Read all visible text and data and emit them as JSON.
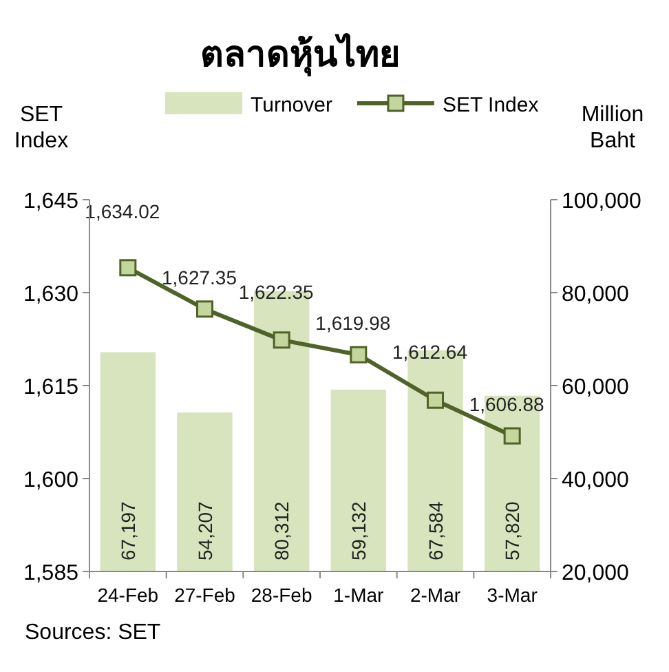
{
  "chart_data": {
    "type": "bar",
    "title": "ตลาดหุ้นไทย",
    "categories": [
      "24-Feb",
      "27-Feb",
      "28-Feb",
      "1-Mar",
      "2-Mar",
      "3-Mar"
    ],
    "series": [
      {
        "name": "Turnover",
        "axis": "y2",
        "color": "#d7e4bd",
        "values": [
          67197,
          54207,
          80312,
          59132,
          67584,
          57820
        ],
        "value_labels": [
          "67,197",
          "54,207",
          "80,312",
          "59,132",
          "67,584",
          "57,820"
        ]
      },
      {
        "name": "SET Index",
        "type": "line",
        "axis": "y",
        "color": "#4f6228",
        "values": [
          1634.02,
          1627.35,
          1622.35,
          1619.98,
          1612.64,
          1606.88
        ],
        "value_labels": [
          "1,634.02",
          "1,627.35",
          "1,622.35",
          "1,619.98",
          "1,612.64",
          "1,606.88"
        ]
      }
    ],
    "ylabel": "SET Index",
    "y2label": "Million Baht",
    "ylim": [
      1585,
      1645
    ],
    "yticks": [
      {
        "value": 1585,
        "label": "1,585"
      },
      {
        "value": 1600,
        "label": "1,600"
      },
      {
        "value": 1615,
        "label": "1,615"
      },
      {
        "value": 1630,
        "label": "1,630"
      },
      {
        "value": 1645,
        "label": "1,645"
      }
    ],
    "y2lim": [
      20000,
      100000
    ],
    "y2ticks": [
      {
        "value": 20000,
        "label": "20,000"
      },
      {
        "value": 40000,
        "label": "40,000"
      },
      {
        "value": 60000,
        "label": "60,000"
      },
      {
        "value": 80000,
        "label": "80,000"
      },
      {
        "value": 100000,
        "label": "100,000"
      }
    ],
    "legend": "top",
    "marker": "square",
    "grid": false,
    "annotations": [
      "Sources: SET"
    ]
  }
}
